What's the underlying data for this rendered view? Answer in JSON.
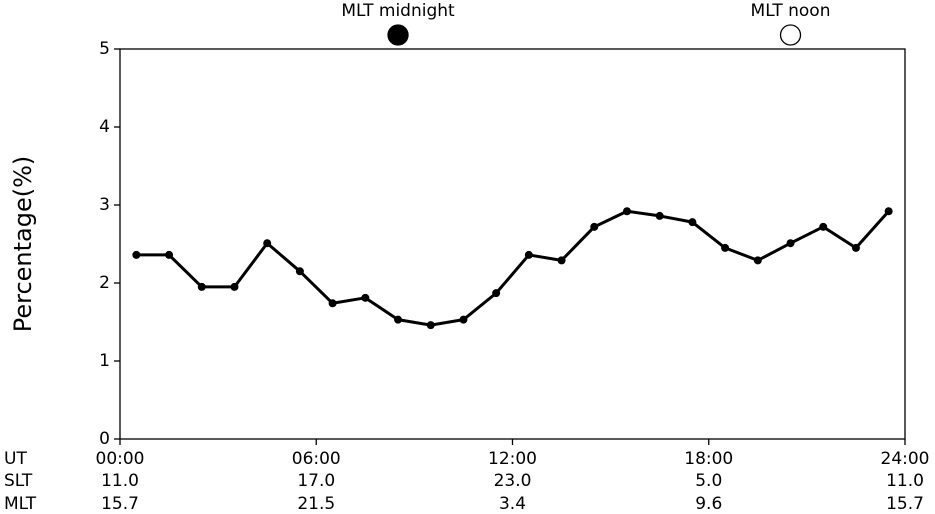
{
  "chart_data": {
    "type": "line",
    "ylabel": "Percentage(%)",
    "x": [
      0.5,
      1.5,
      2.5,
      3.5,
      4.5,
      5.5,
      6.5,
      7.5,
      8.5,
      9.5,
      10.5,
      11.5,
      12.5,
      13.5,
      14.5,
      15.5,
      16.5,
      17.5,
      18.5,
      19.5,
      20.5,
      21.5,
      22.5,
      23.5
    ],
    "series": [
      {
        "color": "#000000",
        "values": [
          2.36,
          2.36,
          1.95,
          1.95,
          2.51,
          2.15,
          1.74,
          1.81,
          1.53,
          1.46,
          1.53,
          1.87,
          2.36,
          2.29,
          2.72,
          2.92,
          2.86,
          2.78,
          2.45,
          2.29,
          2.51,
          2.72,
          2.45,
          2.92
        ]
      }
    ],
    "xlim": [
      0,
      24
    ],
    "xticks": [
      {
        "value": 0,
        "label": "00:00"
      },
      {
        "value": 6,
        "label": "06:00"
      },
      {
        "value": 12,
        "label": "12:00"
      },
      {
        "value": 18,
        "label": "18:00"
      },
      {
        "value": 24,
        "label": "24:00"
      }
    ],
    "x_row_label": "UT",
    "tick_rows": [
      {
        "name": "SLT",
        "labels": [
          "11.0",
          "17.0",
          "23.0",
          "5.0",
          "11.0"
        ]
      },
      {
        "name": "MLT",
        "labels": [
          "15.7",
          "21.5",
          "3.4",
          "9.6",
          "15.7"
        ]
      }
    ],
    "ylim": [
      0,
      5
    ],
    "yticks": [
      0,
      1,
      2,
      3,
      4,
      5
    ],
    "markers": [
      {
        "label": "MLT midnight",
        "x": 8.5,
        "filled": true
      },
      {
        "label": "MLT noon",
        "x": 20.5,
        "filled": false
      }
    ]
  }
}
